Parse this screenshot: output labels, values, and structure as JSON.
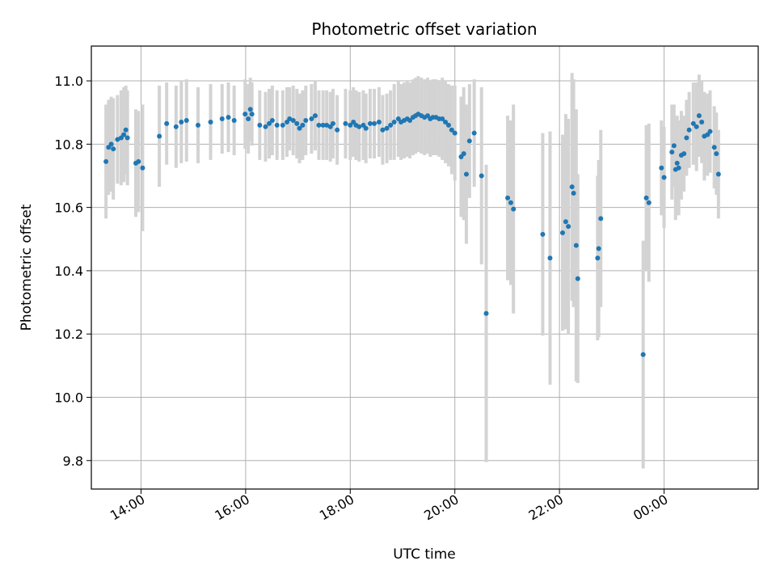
{
  "chart_data": {
    "type": "scatter",
    "title": "Photometric offset variation",
    "xlabel": "UTC time",
    "ylabel": "Photometric offset",
    "x_unit": "hours",
    "xlim": [
      13.05,
      25.8
    ],
    "ylim": [
      9.71,
      11.11
    ],
    "x_ticks": [
      14,
      16,
      18,
      20,
      22,
      24
    ],
    "x_tick_labels": [
      "14:00",
      "16:00",
      "18:00",
      "20:00",
      "22:00",
      "00:00"
    ],
    "y_ticks": [
      9.8,
      10.0,
      10.2,
      10.4,
      10.6,
      10.8,
      11.0
    ],
    "y_tick_labels": [
      "9.8",
      "10.0",
      "10.2",
      "10.4",
      "10.6",
      "10.8",
      "11.0"
    ],
    "grid": true,
    "colors": {
      "points": "#1f77b4",
      "error_bars": "#d3d3d3",
      "grid": "#b0b0b0"
    },
    "points": [
      [
        13.33,
        10.745,
        0.18
      ],
      [
        13.38,
        10.79,
        0.15
      ],
      [
        13.43,
        10.8,
        0.15
      ],
      [
        13.47,
        10.785,
        0.16
      ],
      [
        13.55,
        10.815,
        0.14
      ],
      [
        13.62,
        10.82,
        0.15
      ],
      [
        13.67,
        10.83,
        0.15
      ],
      [
        13.71,
        10.845,
        0.14
      ],
      [
        13.74,
        10.82,
        0.15
      ],
      [
        13.9,
        10.74,
        0.17
      ],
      [
        13.95,
        10.745,
        0.16
      ],
      [
        14.03,
        10.725,
        0.2
      ],
      [
        14.35,
        10.825,
        0.16
      ],
      [
        14.49,
        10.865,
        0.13
      ],
      [
        14.67,
        10.855,
        0.13
      ],
      [
        14.77,
        10.87,
        0.13
      ],
      [
        14.87,
        10.875,
        0.13
      ],
      [
        15.09,
        10.86,
        0.12
      ],
      [
        15.33,
        10.87,
        0.12
      ],
      [
        15.55,
        10.88,
        0.11
      ],
      [
        15.67,
        10.885,
        0.11
      ],
      [
        15.78,
        10.875,
        0.11
      ],
      [
        15.99,
        10.895,
        0.11
      ],
      [
        16.05,
        10.88,
        0.11
      ],
      [
        16.09,
        10.91,
        0.1
      ],
      [
        16.12,
        10.895,
        0.1
      ],
      [
        16.27,
        10.86,
        0.11
      ],
      [
        16.38,
        10.855,
        0.11
      ],
      [
        16.45,
        10.865,
        0.11
      ],
      [
        16.51,
        10.875,
        0.11
      ],
      [
        16.6,
        10.86,
        0.11
      ],
      [
        16.71,
        10.86,
        0.11
      ],
      [
        16.79,
        10.87,
        0.11
      ],
      [
        16.84,
        10.88,
        0.1
      ],
      [
        16.91,
        10.875,
        0.11
      ],
      [
        16.98,
        10.865,
        0.11
      ],
      [
        17.03,
        10.85,
        0.11
      ],
      [
        17.09,
        10.86,
        0.11
      ],
      [
        17.15,
        10.875,
        0.11
      ],
      [
        17.26,
        10.88,
        0.11
      ],
      [
        17.33,
        10.89,
        0.11
      ],
      [
        17.4,
        10.86,
        0.11
      ],
      [
        17.48,
        10.86,
        0.11
      ],
      [
        17.55,
        10.86,
        0.11
      ],
      [
        17.62,
        10.855,
        0.11
      ],
      [
        17.67,
        10.865,
        0.11
      ],
      [
        17.75,
        10.845,
        0.11
      ],
      [
        17.91,
        10.865,
        0.11
      ],
      [
        18.0,
        10.86,
        0.11
      ],
      [
        18.06,
        10.87,
        0.11
      ],
      [
        18.11,
        10.86,
        0.11
      ],
      [
        18.17,
        10.855,
        0.11
      ],
      [
        18.25,
        10.86,
        0.11
      ],
      [
        18.3,
        10.85,
        0.11
      ],
      [
        18.38,
        10.865,
        0.11
      ],
      [
        18.46,
        10.865,
        0.11
      ],
      [
        18.55,
        10.87,
        0.11
      ],
      [
        18.62,
        10.845,
        0.11
      ],
      [
        18.7,
        10.85,
        0.11
      ],
      [
        18.77,
        10.86,
        0.11
      ],
      [
        18.84,
        10.87,
        0.12
      ],
      [
        18.92,
        10.88,
        0.12
      ],
      [
        18.97,
        10.87,
        0.12
      ],
      [
        19.03,
        10.875,
        0.12
      ],
      [
        19.09,
        10.88,
        0.12
      ],
      [
        19.14,
        10.875,
        0.12
      ],
      [
        19.2,
        10.885,
        0.12
      ],
      [
        19.25,
        10.89,
        0.12
      ],
      [
        19.3,
        10.895,
        0.12
      ],
      [
        19.36,
        10.89,
        0.12
      ],
      [
        19.42,
        10.885,
        0.12
      ],
      [
        19.48,
        10.89,
        0.12
      ],
      [
        19.53,
        10.88,
        0.12
      ],
      [
        19.58,
        10.885,
        0.12
      ],
      [
        19.64,
        10.885,
        0.12
      ],
      [
        19.7,
        10.88,
        0.12
      ],
      [
        19.76,
        10.88,
        0.13
      ],
      [
        19.82,
        10.87,
        0.13
      ],
      [
        19.88,
        10.86,
        0.13
      ],
      [
        19.94,
        10.845,
        0.14
      ],
      [
        20.0,
        10.835,
        0.15
      ],
      [
        20.12,
        10.76,
        0.19
      ],
      [
        20.17,
        10.77,
        0.21
      ],
      [
        20.22,
        10.705,
        0.22
      ],
      [
        20.28,
        10.81,
        0.18
      ],
      [
        20.37,
        10.835,
        0.17
      ],
      [
        20.51,
        10.7,
        0.28
      ],
      [
        20.6,
        10.265,
        0.47
      ],
      [
        21.01,
        10.63,
        0.26
      ],
      [
        21.07,
        10.615,
        0.26
      ],
      [
        21.12,
        10.595,
        0.33
      ],
      [
        21.68,
        10.515,
        0.32
      ],
      [
        21.82,
        10.44,
        0.4
      ],
      [
        22.06,
        10.52,
        0.31
      ],
      [
        22.12,
        10.555,
        0.34
      ],
      [
        22.17,
        10.54,
        0.34
      ],
      [
        22.24,
        10.665,
        0.36
      ],
      [
        22.27,
        10.645,
        0.36
      ],
      [
        22.32,
        10.48,
        0.43
      ],
      [
        22.35,
        10.375,
        0.33
      ],
      [
        22.73,
        10.44,
        0.26
      ],
      [
        22.75,
        10.47,
        0.28
      ],
      [
        22.79,
        10.565,
        0.28
      ],
      [
        23.6,
        10.135,
        0.36
      ],
      [
        23.66,
        10.63,
        0.23
      ],
      [
        23.71,
        10.615,
        0.25
      ],
      [
        23.95,
        10.725,
        0.15
      ],
      [
        24.0,
        10.695,
        0.16
      ],
      [
        24.15,
        10.775,
        0.15
      ],
      [
        24.19,
        10.795,
        0.13
      ],
      [
        24.22,
        10.72,
        0.16
      ],
      [
        24.25,
        10.74,
        0.15
      ],
      [
        24.28,
        10.725,
        0.15
      ],
      [
        24.33,
        10.765,
        0.14
      ],
      [
        24.38,
        10.77,
        0.12
      ],
      [
        24.43,
        10.82,
        0.12
      ],
      [
        24.48,
        10.845,
        0.12
      ],
      [
        24.56,
        10.865,
        0.13
      ],
      [
        24.62,
        10.855,
        0.14
      ],
      [
        24.67,
        10.89,
        0.13
      ],
      [
        24.72,
        10.87,
        0.13
      ],
      [
        24.77,
        10.825,
        0.14
      ],
      [
        24.83,
        10.83,
        0.13
      ],
      [
        24.88,
        10.84,
        0.13
      ],
      [
        24.96,
        10.79,
        0.13
      ],
      [
        25.0,
        10.77,
        0.13
      ],
      [
        25.04,
        10.705,
        0.14
      ]
    ]
  }
}
